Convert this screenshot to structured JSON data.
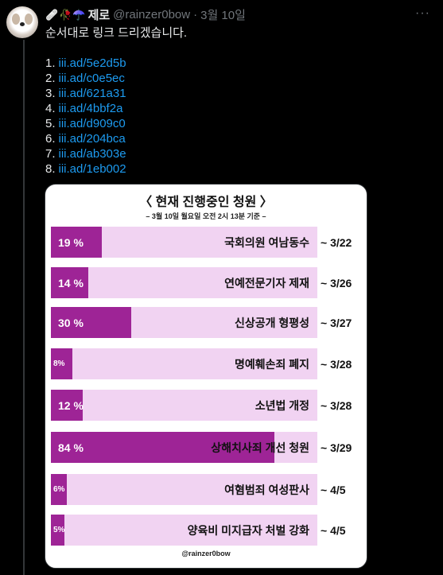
{
  "tweet": {
    "emojis": [
      "🩹",
      "🥀",
      "☂️"
    ],
    "name": "제로",
    "handle": "@rainzer0bow",
    "separator": "·",
    "date": "3월 10일",
    "more": "···",
    "intro_text": "순서대로 링크 드리겠습니다.",
    "links": [
      {
        "num": "1.",
        "url": "iii.ad/5e2d5b"
      },
      {
        "num": "2.",
        "url": "iii.ad/c0e5ec"
      },
      {
        "num": "3.",
        "url": "iii.ad/621a31"
      },
      {
        "num": "4.",
        "url": "iii.ad/4bbf2a"
      },
      {
        "num": "5.",
        "url": "iii.ad/d909c0"
      },
      {
        "num": "6.",
        "url": "iii.ad/204bca"
      },
      {
        "num": "7.",
        "url": "iii.ad/ab303e"
      },
      {
        "num": "8.",
        "url": "iii.ad/1eb002"
      }
    ]
  },
  "card": {
    "title": "〈 현재 진행중인 청원 〉",
    "subtitle": "– 3월 10일 월요일 오전 2시 13분 기준 –",
    "footer": "@rainzer0bow",
    "colors": {
      "fill": "#9e2496",
      "track": "#f1d3f2"
    },
    "petitions": [
      {
        "pct_label": "19 %",
        "progress": 0.19,
        "title": "국회의원 여남동수",
        "deadline": "~ 3/22"
      },
      {
        "pct_label": "14 %",
        "progress": 0.14,
        "title": "연예전문기자 제재",
        "deadline": "~ 3/26"
      },
      {
        "pct_label": "30 %",
        "progress": 0.3,
        "title": "신상공개 형평성",
        "deadline": "~ 3/27"
      },
      {
        "pct_label": "8%",
        "progress": 0.08,
        "title": "명예훼손죄 폐지",
        "deadline": "~ 3/28"
      },
      {
        "pct_label": "12 %",
        "progress": 0.12,
        "title": "소년법 개정",
        "deadline": "~ 3/28"
      },
      {
        "pct_label": "84 %",
        "progress": 0.84,
        "title": "상해치사죄 개선 청원",
        "deadline": "~ 3/29"
      },
      {
        "pct_label": "6%",
        "progress": 0.06,
        "title": "여혐범죄 여성판사",
        "deadline": "~ 4/5"
      },
      {
        "pct_label": "5%",
        "progress": 0.05,
        "title": "양육비 미지급자 처벌 강화",
        "deadline": "~ 4/5"
      }
    ]
  }
}
